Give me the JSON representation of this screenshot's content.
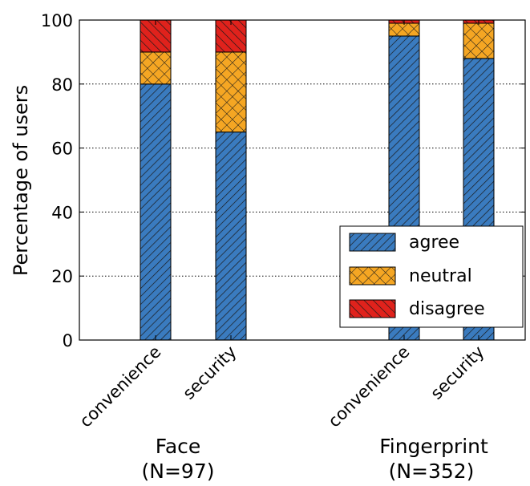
{
  "chart_data": {
    "type": "bar",
    "stacked": true,
    "ylabel": "Percentage of users",
    "ylim": [
      0,
      100
    ],
    "yticks": [
      0,
      20,
      40,
      60,
      80,
      100
    ],
    "grid": true,
    "legend_position": "lower-right",
    "groups": [
      {
        "label_line1": "Face",
        "label_line2": "(N=97)"
      },
      {
        "label_line1": "Fingerprint",
        "label_line2": "(N=352)"
      }
    ],
    "categories": [
      "convenience",
      "security",
      "convenience",
      "security"
    ],
    "series": [
      {
        "name": "agree",
        "color": "#3a7bbf",
        "pattern": "diagonal-lines",
        "values": [
          80,
          65,
          95,
          88
        ]
      },
      {
        "name": "neutral",
        "color": "#f5a623",
        "pattern": "crosshatch",
        "values": [
          10,
          25,
          4,
          11
        ]
      },
      {
        "name": "disagree",
        "color": "#e0221c",
        "pattern": "diagonal-lines",
        "values": [
          10,
          10,
          1,
          1
        ]
      }
    ]
  }
}
